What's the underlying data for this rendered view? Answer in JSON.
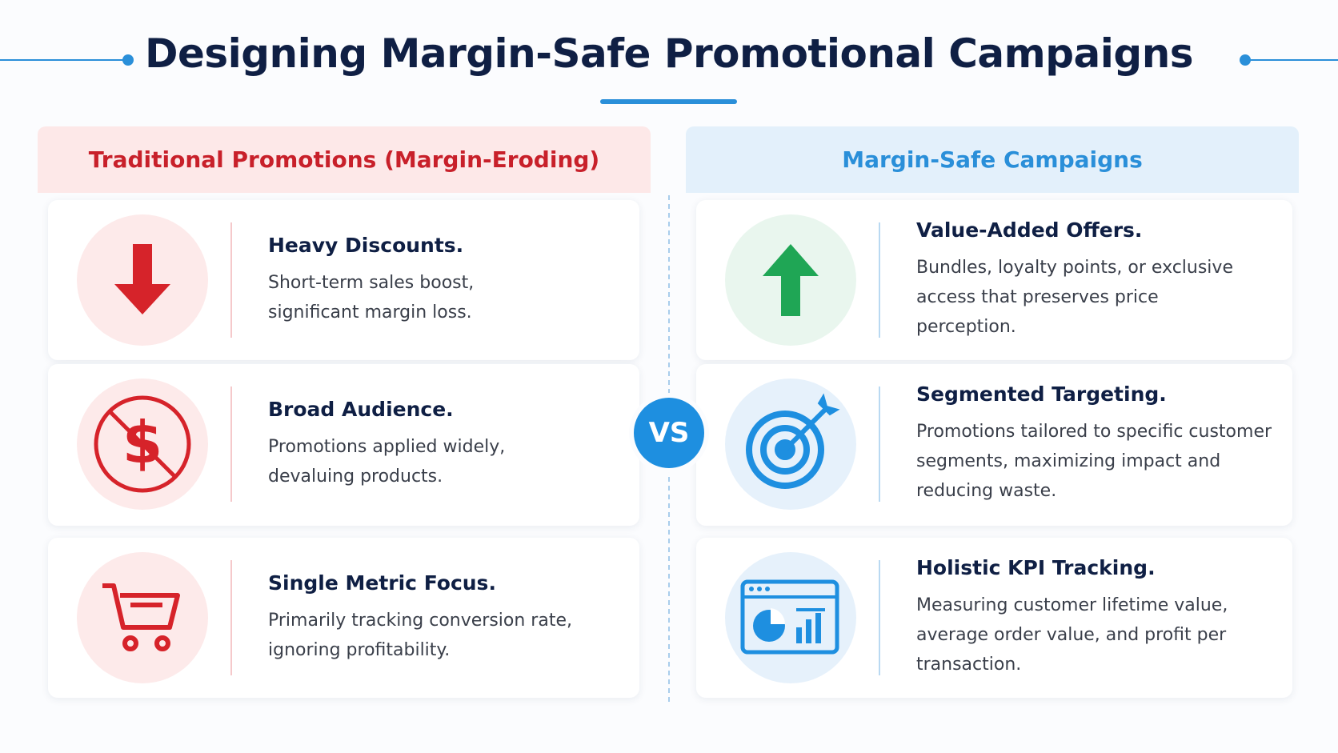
{
  "title": "Designing Margin-Safe Promotional Campaigns",
  "vs": "VS",
  "columns": [
    {
      "heading": "Traditional Promotions (Margin-Eroding)",
      "items": [
        {
          "title": "Heavy Discounts.",
          "text": "Short-term sales boost, significant margin loss."
        },
        {
          "title": "Broad Audience.",
          "text": "Promotions applied widely, devaluing products."
        },
        {
          "title": "Single Metric Focus.",
          "text": "Primarily tracking conversion rate, ignoring profitability."
        }
      ]
    },
    {
      "heading": "Margin-Safe Campaigns",
      "items": [
        {
          "title": "Value-Added Offers.",
          "text": "Bundles, loyalty points, or exclusive access that preserves price perception."
        },
        {
          "title": "Segmented Targeting.",
          "text": "Promotions tailored to specific customer segments, maximizing impact and reducing waste."
        },
        {
          "title": "Holistic KPI Tracking.",
          "text": "Measuring customer lifetime value, average order value, and profit per transaction."
        }
      ]
    }
  ]
}
